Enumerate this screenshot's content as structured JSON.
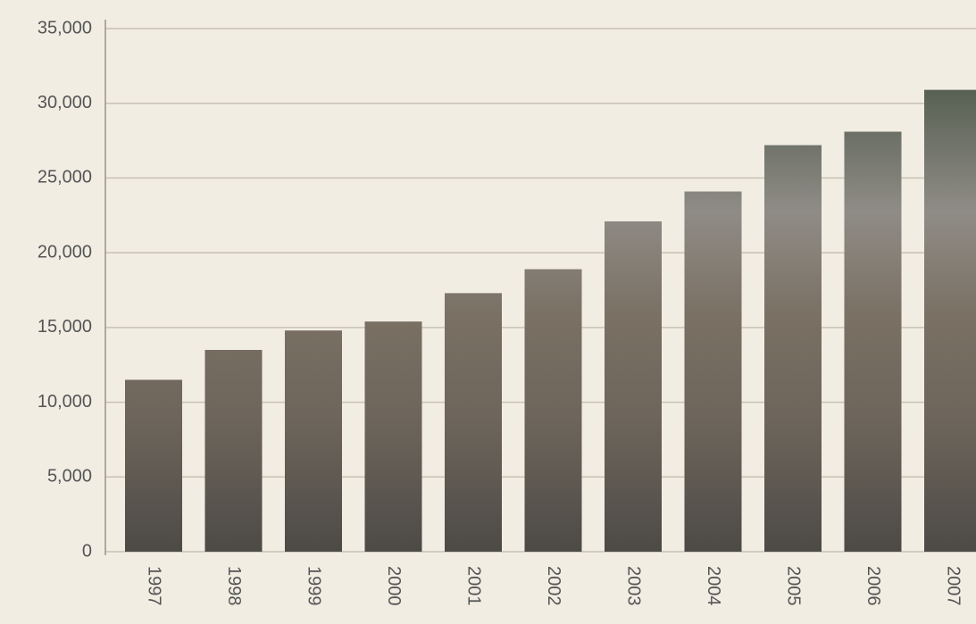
{
  "chart_data": {
    "type": "bar",
    "categories": [
      "1997",
      "1998",
      "1999",
      "2000",
      "2001",
      "2002",
      "2003",
      "2004",
      "2005",
      "2006",
      "2007"
    ],
    "values": [
      11500,
      13500,
      14800,
      15400,
      17300,
      18900,
      22100,
      24100,
      27200,
      28100,
      30900
    ],
    "ylim": [
      0,
      35000
    ],
    "yticks": [
      0,
      {
        "value": 5000,
        "label": "5,000"
      },
      {
        "value": 10000,
        "label": "10,000"
      },
      {
        "value": 15000,
        "label": "15,000"
      },
      {
        "value": 20000,
        "label": "20,000"
      },
      {
        "value": 25000,
        "label": "25,000"
      },
      {
        "value": 30000,
        "label": "30,000"
      },
      {
        "value": 35000,
        "label": "35,000"
      }
    ],
    "grid": true
  }
}
